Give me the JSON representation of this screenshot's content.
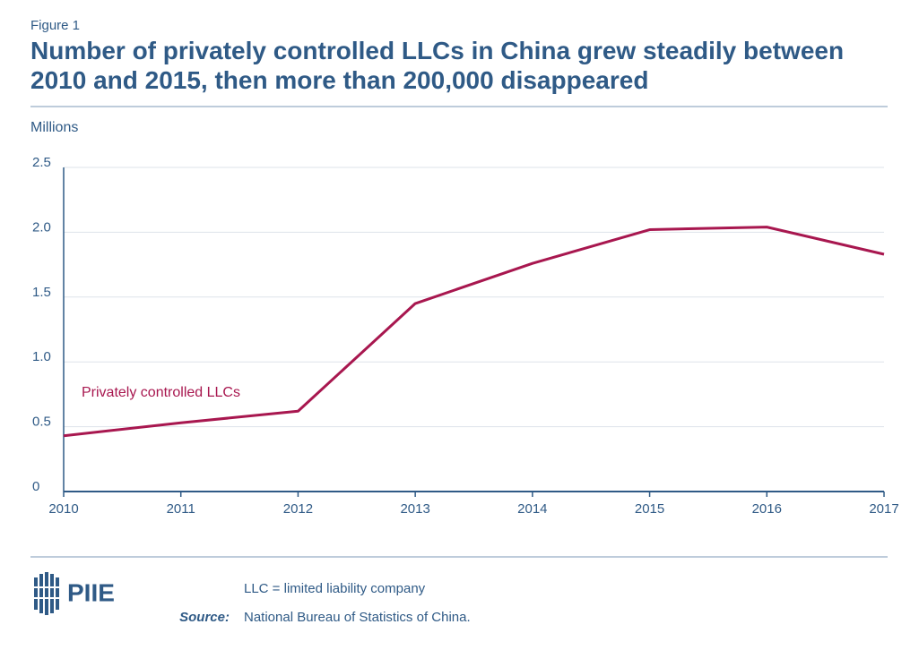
{
  "chart_data": {
    "type": "line",
    "figure_label": "Figure 1",
    "title": "Number of privately controlled LLCs in China grew steadily between 2010 and 2015, then more than 200,000 disappeared",
    "y_label": "Millions",
    "x": [
      2010,
      2011,
      2012,
      2013,
      2014,
      2015,
      2016,
      2017
    ],
    "xlim": [
      2010,
      2017
    ],
    "xticks": [
      2010,
      2011,
      2012,
      2013,
      2014,
      2015,
      2016,
      2017
    ],
    "series": [
      {
        "name": "Privately controlled LLCs",
        "color": "#a8174f",
        "values": [
          0.43,
          0.53,
          0.62,
          1.45,
          1.76,
          2.02,
          2.04,
          1.83
        ]
      }
    ],
    "ylim": [
      0,
      2.5
    ],
    "yticks": [
      0,
      0.5,
      {
        "value": 1,
        "label": "1.0"
      },
      1.5,
      {
        "value": 2,
        "label": "2.0"
      },
      2.5
    ],
    "grid": true,
    "note": "LLC = limited liability company",
    "source_label": "Source:",
    "source": "National Bureau of Statistics of China.",
    "logo_text": "PIIE"
  }
}
